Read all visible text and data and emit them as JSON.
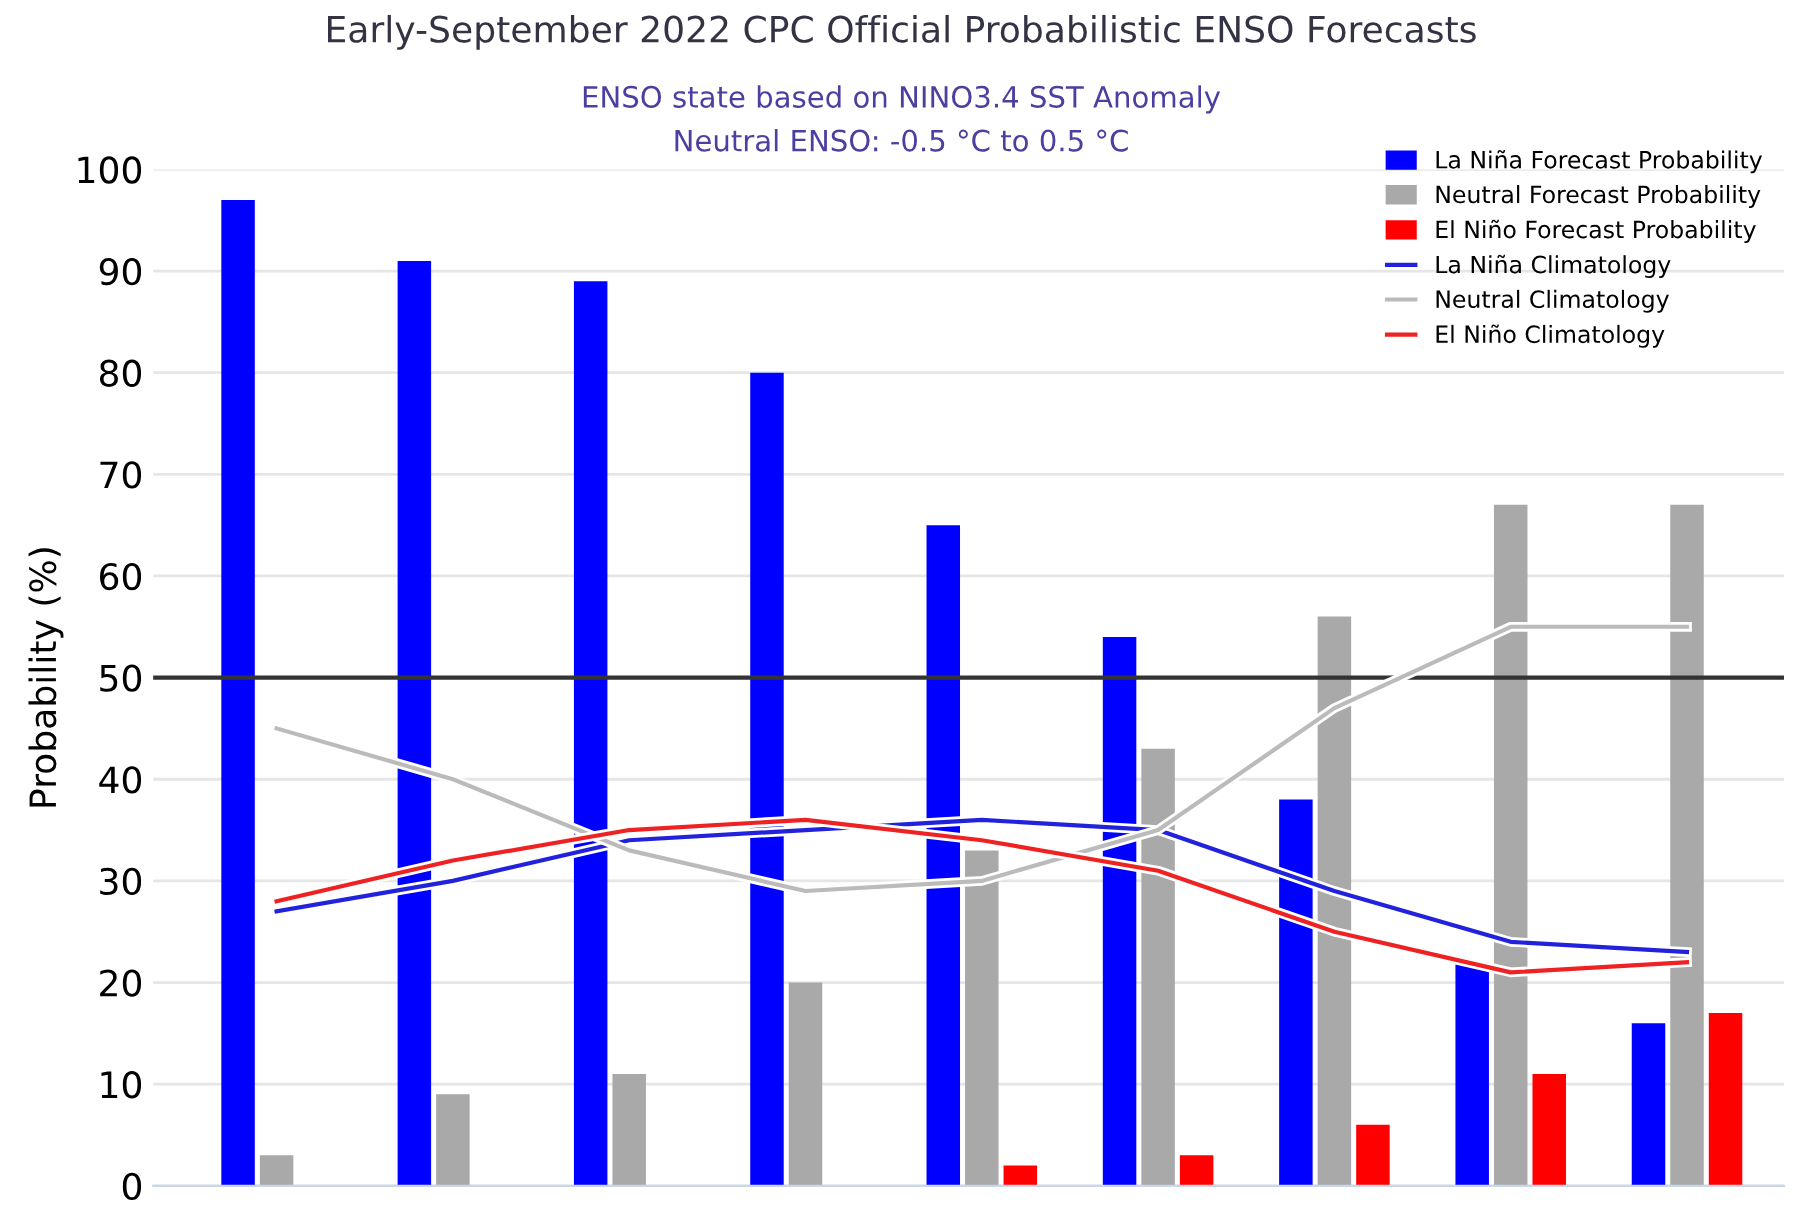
{
  "chart_data": {
    "type": "bar",
    "title": "Early-September 2022 CPC Official Probabilistic ENSO Forecasts",
    "subtitle": "ENSO state based on NINO3.4 SST Anomaly\nNeutral ENSO: -0.5 °C to 0.5 °C",
    "ylabel": "Probability (%)",
    "categories": [
      null,
      null,
      null,
      null,
      null,
      null,
      null,
      null,
      null
    ],
    "series": [
      {
        "name": "La Niña Forecast Probability",
        "color": "#0000ff",
        "values": [
          97,
          91,
          89,
          80,
          65,
          54,
          38,
          22,
          16
        ]
      },
      {
        "name": "Neutral Forecast Probability",
        "color": "#a9a9a9",
        "values": [
          3,
          9,
          11,
          20,
          33,
          43,
          56,
          67,
          67
        ]
      },
      {
        "name": "El Niño Forecast Probability",
        "color": "#ff0000",
        "values": [
          0,
          0,
          0,
          0,
          2,
          3,
          6,
          11,
          17
        ]
      },
      {
        "name": "La Niña Climatology",
        "type": "line",
        "color": "#2222dd",
        "values": [
          27,
          30,
          34,
          35,
          36,
          35,
          29,
          24,
          23
        ]
      },
      {
        "name": "Neutral Climatology",
        "type": "line",
        "color": "#bbbbbb",
        "values": [
          45,
          40,
          33,
          29,
          30,
          35,
          47,
          55,
          55
        ]
      },
      {
        "name": "El Niño Climatology",
        "type": "line",
        "color": "#ee2222",
        "values": [
          28,
          32,
          35,
          36,
          34,
          31,
          25,
          21,
          22
        ]
      }
    ],
    "ylim": [
      0,
      100
    ],
    "yticks": [
      0,
      10,
      20,
      30,
      40,
      50,
      60,
      70,
      80,
      90,
      100
    ],
    "ref_lines": [
      {
        "axis": "y",
        "value": 50,
        "color": "#333333"
      }
    ],
    "grid": "y",
    "legend": "top right"
  }
}
